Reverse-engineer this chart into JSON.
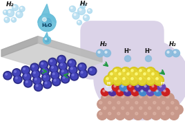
{
  "bg_color": "#ffffff",
  "fig_width": 2.68,
  "fig_height": 1.89,
  "dpi": 100,
  "left_panel": {
    "electrode_color_top": "#d0d0d0",
    "electrode_color_side": "#a8a8a8",
    "electrode_color_bot": "#b8b8b8",
    "np_outer": "#2d2d88",
    "np_inner": "#4444bb",
    "np_highlight": "#7777dd",
    "water_color": "#6abfda",
    "water_color2": "#4aa0c8",
    "water_dark": "#2878a8",
    "h2_bubble": "#a8d8ee",
    "h2_label_left": "H₂",
    "h2_label_right": "H₂",
    "water_label": "H₂O",
    "green": "#229944"
  },
  "right_panel": {
    "blob_color": "#dbd3e8",
    "substrate_pink": "#c8988a",
    "substrate_mauve": "#9a6878",
    "substrate_highlight": "#e0b8aa",
    "au_yellow": "#d8c820",
    "au_bright": "#eedd40",
    "w_purple": "#5030a0",
    "w_purple2": "#6848b8",
    "w_red": "#cc2020",
    "w_white": "#d8d8f0",
    "w_blue": "#4488cc",
    "h2_blue_dark": "#3366aa",
    "h2_blue_light": "#88bbdd",
    "green": "#229944",
    "h2_label": "H₂",
    "hplus_label": "H⁺"
  }
}
